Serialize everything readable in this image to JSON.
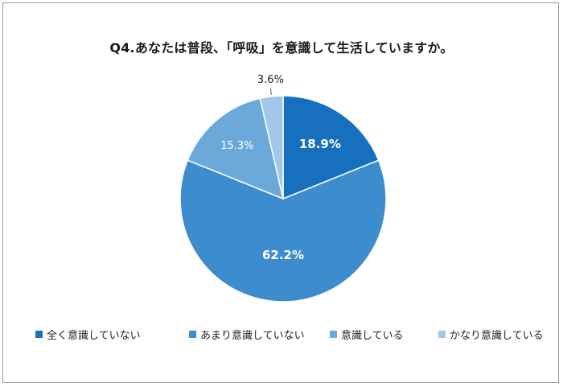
{
  "chart_data": {
    "type": "pie",
    "title": "Q4.あなたは普段、「呼吸」を意識して生活していますか。",
    "categories": [
      "全く意識していない",
      "あまり意識していない",
      "意識している",
      "かなり意識している"
    ],
    "values": [
      18.9,
      62.2,
      15.3,
      3.6
    ],
    "labels": [
      "18.9%",
      "62.2%",
      "15.3%",
      "3.6%"
    ],
    "colors": [
      "#1770bd",
      "#3d8ccd",
      "#6aa9d9",
      "#a2c7e8"
    ],
    "label_colors": [
      "#ffffff",
      "#ffffff",
      "#ffffff",
      "#222222"
    ],
    "label_bold": [
      true,
      true,
      false,
      false
    ],
    "start_angle_deg": 0,
    "direction": "clockwise",
    "legend_position": "bottom"
  }
}
